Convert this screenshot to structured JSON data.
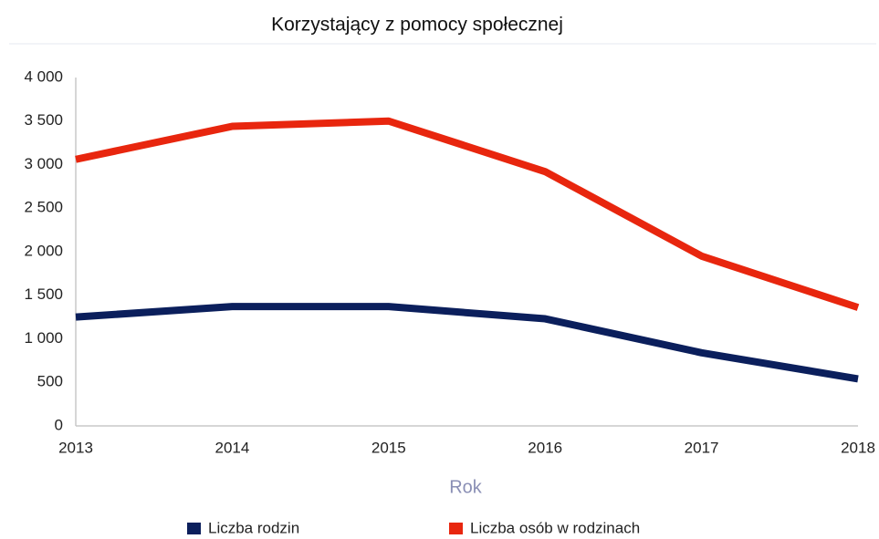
{
  "chart_data": {
    "type": "line",
    "title": "Korzystający z pomocy społecznej",
    "x_label": "Rok",
    "x": [
      2013,
      2014,
      2015,
      2016,
      2017,
      2018
    ],
    "xlim": [
      2013,
      2018
    ],
    "xticks": [
      2013,
      2014,
      2015,
      2016,
      2017,
      2018
    ],
    "ylim": [
      0,
      4000
    ],
    "yticks": [
      0,
      500,
      {
        "value": 1000,
        "label": "1 000"
      },
      {
        "value": 1500,
        "label": "1 500"
      },
      {
        "value": 2000,
        "label": "2 000"
      },
      {
        "value": 2500,
        "label": "2 500"
      },
      {
        "value": 3000,
        "label": "3 000"
      },
      {
        "value": 3500,
        "label": "3 500"
      },
      {
        "value": 4000,
        "label": "4 000"
      }
    ],
    "grid": false,
    "legend": "bottom",
    "series": [
      {
        "name": "Liczba rodzin",
        "color": "#0b1f5c",
        "values": [
          1250,
          1370,
          1370,
          1230,
          840,
          540
        ]
      },
      {
        "name": "Liczba osób w rodzinach",
        "color": "#e8260e",
        "values": [
          3060,
          3440,
          3500,
          2920,
          1950,
          1360
        ]
      }
    ]
  }
}
